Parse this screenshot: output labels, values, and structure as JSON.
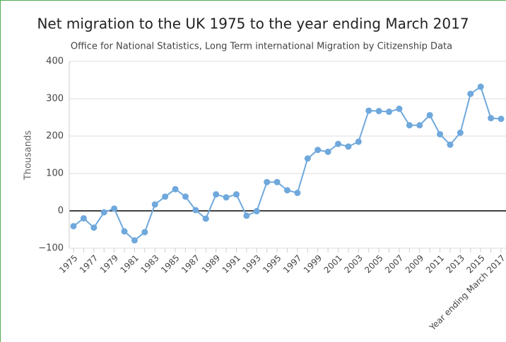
{
  "chart_data": {
    "type": "line",
    "title": "Net migration to the UK 1975 to the year ending March 2017",
    "subtitle": "Office for National Statistics, Long Term international Migration by Citizenship Data",
    "y_axis_label": "Thousands",
    "categories": [
      "1975",
      null,
      "1977",
      null,
      "1979",
      null,
      "1981",
      null,
      "1983",
      null,
      "1985",
      null,
      "1987",
      null,
      "1989",
      null,
      "1991",
      null,
      "1993",
      null,
      "1995",
      null,
      "1997",
      null,
      "1999",
      null,
      "2001",
      null,
      "2003",
      null,
      "2005",
      null,
      "2007",
      null,
      "2009",
      null,
      "2011",
      null,
      "2013",
      null,
      "2015",
      null,
      "Year ending March 2017"
    ],
    "series": [
      {
        "name": "Net migration",
        "color": "#6fa8dc",
        "values": [
          -41,
          -20,
          -45,
          -4,
          6,
          -55,
          -79,
          -57,
          17,
          38,
          58,
          38,
          2,
          -21,
          44,
          36,
          44,
          -13,
          -1,
          77,
          77,
          55,
          48,
          140,
          163,
          158,
          179,
          172,
          185,
          268,
          267,
          265,
          273,
          229,
          229,
          256,
          205,
          177,
          209,
          313,
          332,
          248,
          246
        ]
      }
    ],
    "ylim": [
      -100,
      400
    ],
    "yticks": [
      {
        "value": -100,
        "label": "−100"
      },
      0,
      100,
      200,
      300,
      400
    ],
    "grid": true
  }
}
